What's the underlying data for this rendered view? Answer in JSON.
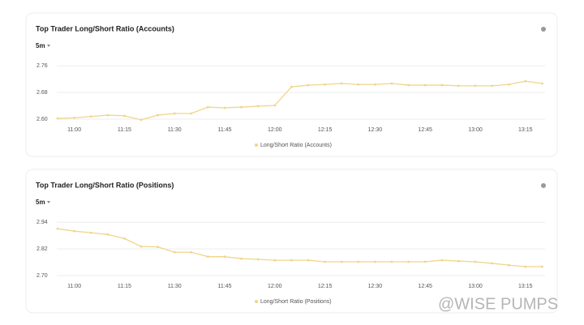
{
  "chart_data": [
    {
      "type": "line",
      "title": "Top Trader Long/Short Ratio (Accounts)",
      "interval": "5m",
      "categories": [
        null,
        "11:00",
        null,
        null,
        "11:15",
        null,
        null,
        "11:30",
        null,
        null,
        "11:45",
        null,
        null,
        "12:00",
        null,
        null,
        "12:15",
        null,
        null,
        "12:30",
        null,
        null,
        "12:45",
        null,
        null,
        "13:00",
        null,
        null,
        "13:15",
        null
      ],
      "series": [
        {
          "name": "Long/Short Ratio (Accounts)",
          "color": "#f0d58a",
          "values": [
            2.602,
            2.604,
            2.608,
            2.612,
            2.61,
            2.598,
            2.612,
            2.617,
            2.617,
            2.636,
            2.634,
            2.636,
            2.639,
            2.641,
            2.697,
            2.702,
            2.704,
            2.707,
            2.704,
            2.704,
            2.707,
            2.702,
            2.702,
            2.702,
            2.7,
            2.7,
            2.7,
            2.704,
            2.714,
            2.707
          ]
        }
      ],
      "ylim": [
        2.6,
        2.78
      ],
      "yticks": [
        {
          "value": 2.6,
          "label": "2.60"
        },
        2.68,
        2.76
      ],
      "grid": true
    },
    {
      "type": "line",
      "title": "Top Trader Long/Short Ratio (Positions)",
      "interval": "5m",
      "categories": [
        null,
        "11:00",
        null,
        null,
        "11:15",
        null,
        null,
        "11:30",
        null,
        null,
        "11:45",
        null,
        null,
        "12:00",
        null,
        null,
        "12:15",
        null,
        null,
        "12:30",
        null,
        null,
        "12:45",
        null,
        null,
        "13:00",
        null,
        null,
        "13:15",
        null
      ],
      "series": [
        {
          "name": "Long/Short Ratio (Positions)",
          "color": "#f0d58a",
          "values": [
            2.911,
            2.9,
            2.893,
            2.885,
            2.867,
            2.831,
            2.829,
            2.805,
            2.805,
            2.785,
            2.785,
            2.776,
            2.773,
            2.769,
            2.769,
            2.769,
            2.762,
            2.762,
            2.762,
            2.762,
            2.762,
            2.762,
            2.762,
            2.769,
            2.765,
            2.762,
            2.755,
            2.747,
            2.74,
            2.74
          ]
        }
      ],
      "ylim": [
        2.7,
        2.97
      ],
      "yticks": [
        {
          "value": 2.7,
          "label": "2.70"
        },
        2.82,
        2.94
      ],
      "grid": true
    }
  ],
  "watermark": "@WISE PUMPS"
}
